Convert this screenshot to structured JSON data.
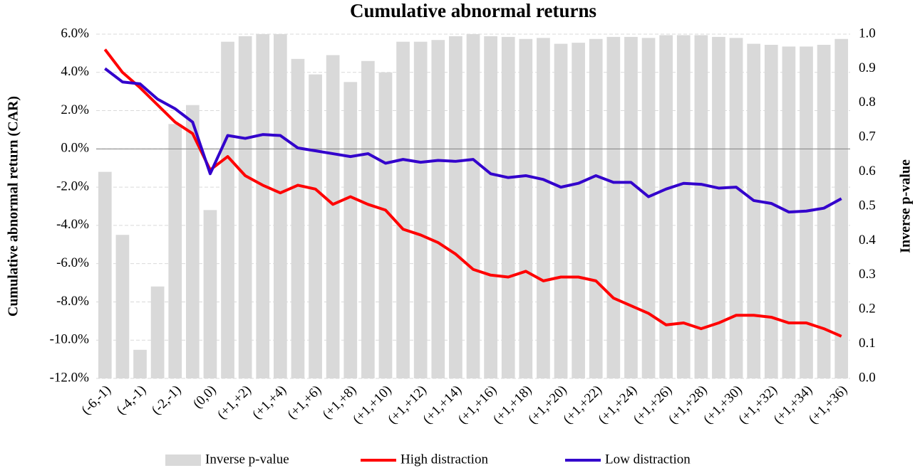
{
  "chart_data": {
    "type": "bar_line",
    "title": "Cumulative abnormal returns",
    "ylabel": "Cumulative abnormal return (CAR)",
    "y2label": "Inverse p-value",
    "categories": [
      "(-6,-1)",
      null,
      "(-4,-1)",
      null,
      "(-2,-1)",
      null,
      "(0,0)",
      null,
      "(+1,+2)",
      null,
      "(+1,+4)",
      null,
      "(+1,+6)",
      null,
      "(+1,+8)",
      null,
      "(+1,+10)",
      null,
      "(+1,+12)",
      null,
      "(+1,+14)",
      null,
      "(+1,+16)",
      null,
      "(+1,+18)",
      null,
      "(+1,+20)",
      null,
      "(+1,+22)",
      null,
      "(+1,+24)",
      null,
      "(+1,+26)",
      null,
      "(+1,+28)",
      null,
      "(+1,+30)",
      null,
      "(+1,+32)",
      null,
      "(+1,+34)",
      null,
      "(+1,+36)"
    ],
    "series": [
      {
        "name": "Inverse p-value",
        "kind": "bar",
        "axis": "y2",
        "color": "#d9d9d9",
        "values": [
          0.6,
          0.417,
          0.083,
          0.267,
          0.739,
          0.794,
          0.489,
          0.978,
          0.994,
          1.0,
          1.0,
          0.928,
          0.883,
          0.939,
          0.861,
          0.922,
          0.889,
          0.978,
          0.978,
          0.983,
          0.994,
          1.0,
          0.994,
          0.992,
          0.986,
          0.989,
          0.972,
          0.975,
          0.986,
          0.992,
          0.992,
          0.989,
          0.997,
          0.997,
          0.997,
          0.992,
          0.989,
          0.972,
          0.969,
          0.964,
          0.964,
          0.969,
          0.986
        ]
      },
      {
        "name": "High distraction",
        "kind": "line",
        "color": "#ff0000",
        "values": [
          5.2,
          4.0,
          3.2,
          2.3,
          1.4,
          0.8,
          -1.1,
          -0.4,
          -1.4,
          -1.9,
          -2.3,
          -1.9,
          -2.1,
          -2.9,
          -2.5,
          -2.9,
          -3.2,
          -4.2,
          -4.5,
          -4.9,
          -5.5,
          -6.3,
          -6.6,
          -6.7,
          -6.4,
          -6.9,
          -6.7,
          -6.7,
          -6.9,
          -7.8,
          -8.2,
          -8.6,
          -9.2,
          -9.1,
          -9.4,
          -9.1,
          -8.7,
          -8.7,
          -8.8,
          -9.1,
          -9.1,
          -9.4,
          -9.8
        ]
      },
      {
        "name": "Low distraction",
        "kind": "line",
        "color": "#3300cc",
        "values": [
          4.2,
          3.5,
          3.4,
          2.6,
          2.1,
          1.4,
          -1.3,
          0.7,
          0.55,
          0.75,
          0.7,
          0.05,
          -0.1,
          -0.25,
          -0.4,
          -0.25,
          -0.75,
          -0.55,
          -0.7,
          -0.6,
          -0.65,
          -0.55,
          -1.3,
          -1.5,
          -1.4,
          -1.6,
          -2.0,
          -1.8,
          -1.4,
          -1.75,
          -1.75,
          -2.5,
          -2.1,
          -1.8,
          -1.85,
          -2.05,
          -2.0,
          -2.7,
          -2.85,
          -3.3,
          -3.25,
          -3.1,
          -2.6
        ]
      }
    ],
    "ylim": [
      -12,
      6
    ],
    "yticks": [
      {
        "value": -12,
        "label": "-12.0%"
      },
      {
        "value": -10,
        "label": "-10.0%"
      },
      {
        "value": -8,
        "label": "-8.0%"
      },
      {
        "value": -6,
        "label": "-6.0%"
      },
      {
        "value": -4,
        "label": "-4.0%"
      },
      {
        "value": -2,
        "label": "-2.0%"
      },
      {
        "value": 0,
        "label": "0.0%"
      },
      {
        "value": 2,
        "label": "2.0%"
      },
      {
        "value": 4,
        "label": "4.0%"
      },
      {
        "value": 6,
        "label": "6.0%"
      }
    ],
    "y2lim": [
      0,
      1
    ],
    "y2ticks": [
      {
        "value": 0,
        "label": "0.0"
      },
      0.1,
      0.2,
      0.3,
      0.4,
      0.5,
      0.6,
      0.7,
      0.8,
      0.9,
      {
        "value": 1,
        "label": "1.0"
      }
    ],
    "grid": true,
    "legend": "bottom"
  }
}
